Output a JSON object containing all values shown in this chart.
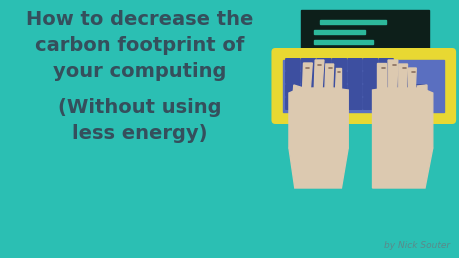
{
  "bg_color": "#2bbfb3",
  "title_line1": "How to decrease the",
  "title_line2": "carbon footprint of",
  "title_line3": "your computing",
  "subtitle_line1": "(Without using",
  "subtitle_line2": "less energy)",
  "author": "by Nick Souter",
  "text_color": "#354f5c",
  "author_color": "#5a8a8a",
  "screen_bg": "#0d1f1a",
  "screen_lines_color": "#2db89b",
  "keyboard_body": "#5a6fc0",
  "keyboard_border": "#e8d832",
  "keyboard_key": "#3d4fa0",
  "keyboard_key_gap": "#2a3580",
  "hand_color": "#dcc9b0",
  "hand_outline": "#c8b098"
}
